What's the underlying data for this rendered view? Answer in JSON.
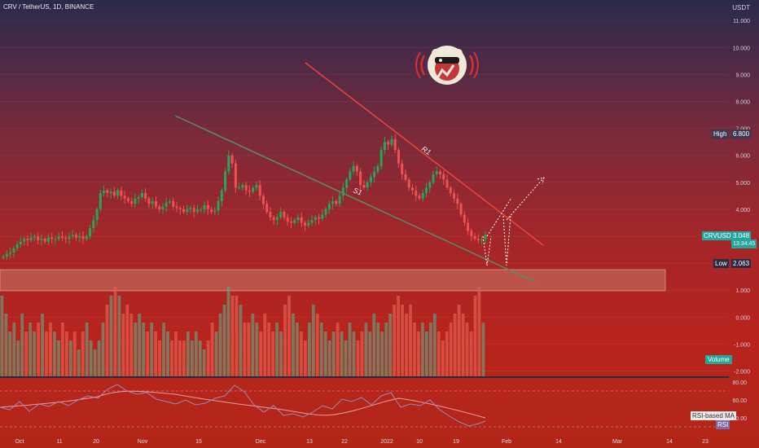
{
  "header": {
    "symbol_title": "CRV / TetherUS, 1D, BINANCE"
  },
  "price_axis": {
    "unit": "USDT",
    "labels": [
      "11.000",
      "10.000",
      "9.000",
      "8.000",
      "7.000",
      "6.000",
      "5.000",
      "4.000",
      "3.000",
      "2.000",
      "1.000",
      "0.000",
      "-1.000",
      "-2.000"
    ]
  },
  "rsi_axis": {
    "labels": [
      "80.00",
      "60.00",
      "40.00"
    ]
  },
  "time_axis": {
    "labels": [
      "Oct",
      "11",
      "20",
      "Nov",
      "15",
      "Dec",
      "13",
      "22",
      "2022",
      "10",
      "19",
      "Feb",
      "14",
      "Mar",
      "14",
      "23"
    ]
  },
  "tags": {
    "high_label": "High",
    "high_value": "6.800",
    "low_label": "Low",
    "low_value": "2.063",
    "symbol_label": "CRVUSDT",
    "last_price": "3.048",
    "countdown": "13:34:45",
    "volume_label": "Volume",
    "rsi_ma_label": "RSI-based MA",
    "rsi_label": "RSI"
  },
  "annotations": {
    "resistance": "R1",
    "support": "S1"
  },
  "colors": {
    "resistance_line": "#e8463c",
    "support_line": "#5a8a6a",
    "up_candle": "#26a65b",
    "down_candle": "#ef5350",
    "support_zone": "#d9a890",
    "arrow": "#ffffff"
  },
  "chart_data": {
    "type": "candlestick",
    "symbol": "CRV/USDT",
    "timeframe": "1D",
    "exchange": "BINANCE",
    "high": 6.8,
    "low": 2.063,
    "last": 3.048,
    "ylim": [
      -2,
      11.5
    ],
    "x_ticks": [
      "Oct",
      "11",
      "20",
      "Nov",
      "15",
      "Dec",
      "13",
      "22",
      "2022",
      "10",
      "19",
      "Feb",
      "14",
      "Mar",
      "14",
      "23"
    ],
    "close_path": [
      2.25,
      2.35,
      2.4,
      2.55,
      2.7,
      2.8,
      2.9,
      2.85,
      2.95,
      3.0,
      2.85,
      2.9,
      2.8,
      2.95,
      2.9,
      2.9,
      3.0,
      2.95,
      2.9,
      3.0,
      3.05,
      2.95,
      3.0,
      2.9,
      3.0,
      3.3,
      3.6,
      4.0,
      4.6,
      4.7,
      4.6,
      4.65,
      4.5,
      4.7,
      4.5,
      4.4,
      4.3,
      4.2,
      4.4,
      4.45,
      4.6,
      4.4,
      4.2,
      4.3,
      4.1,
      4.0,
      4.1,
      4.25,
      4.3,
      4.1,
      4.05,
      4.0,
      3.9,
      4.0,
      4.05,
      3.9,
      4.0,
      4.0,
      4.15,
      4.0,
      3.9,
      3.95,
      4.3,
      4.7,
      5.4,
      6.0,
      5.7,
      4.8,
      4.8,
      4.9,
      4.7,
      4.65,
      4.8,
      4.9,
      4.5,
      4.2,
      3.9,
      3.7,
      3.6,
      3.7,
      3.9,
      3.7,
      3.55,
      3.5,
      3.6,
      3.7,
      3.5,
      3.4,
      3.5,
      3.6,
      3.7,
      3.65,
      3.8,
      4.0,
      4.2,
      4.3,
      4.2,
      4.5,
      4.8,
      5.1,
      5.4,
      5.6,
      5.4,
      4.9,
      4.8,
      5.0,
      5.2,
      5.4,
      5.6,
      6.2,
      6.5,
      6.4,
      6.6,
      6.2,
      5.7,
      5.3,
      5.1,
      4.8,
      4.7,
      4.5,
      4.4,
      4.6,
      4.8,
      5.0,
      5.3,
      5.4,
      5.3,
      5.1,
      4.8,
      4.6,
      4.4,
      4.2,
      3.8,
      3.5,
      3.2,
      3.0,
      2.9,
      2.85,
      2.9,
      3.05
    ],
    "volume_path": [
      0.9,
      0.7,
      0.5,
      0.6,
      0.4,
      0.7,
      0.5,
      0.6,
      0.5,
      0.6,
      0.7,
      0.5,
      0.6,
      0.5,
      0.4,
      0.6,
      0.5,
      0.4,
      0.5,
      0.3,
      0.5,
      0.6,
      0.4,
      0.3,
      0.4,
      0.6,
      0.8,
      0.9,
      1.0,
      0.9,
      0.7,
      0.8,
      0.7,
      0.6,
      0.7,
      0.6,
      0.5,
      0.6,
      0.5,
      0.4,
      0.6,
      0.5,
      0.4,
      0.5,
      0.4,
      0.4,
      0.5,
      0.4,
      0.5,
      0.4,
      0.3,
      0.4,
      0.6,
      0.5,
      0.7,
      0.8,
      1.0,
      0.9,
      0.9,
      0.8,
      0.6,
      0.6,
      0.7,
      0.6,
      0.5,
      0.7,
      0.6,
      0.5,
      0.6,
      0.5,
      0.8,
      0.9,
      0.7,
      0.6,
      0.5,
      0.4,
      0.6,
      0.8,
      0.7,
      0.6,
      0.5,
      0.4,
      0.5,
      0.6,
      0.5,
      0.4,
      0.6,
      0.5,
      0.4,
      0.5,
      0.6,
      0.5,
      0.7,
      0.6,
      0.5,
      0.6,
      0.7,
      0.8,
      0.9,
      0.8,
      0.7,
      0.8,
      0.6,
      0.5,
      0.6,
      0.5,
      0.6,
      0.7,
      0.5,
      0.4,
      0.5,
      0.6,
      0.7,
      0.8,
      0.7,
      0.6,
      0.5,
      0.9,
      1.0,
      0.6
    ]
  }
}
